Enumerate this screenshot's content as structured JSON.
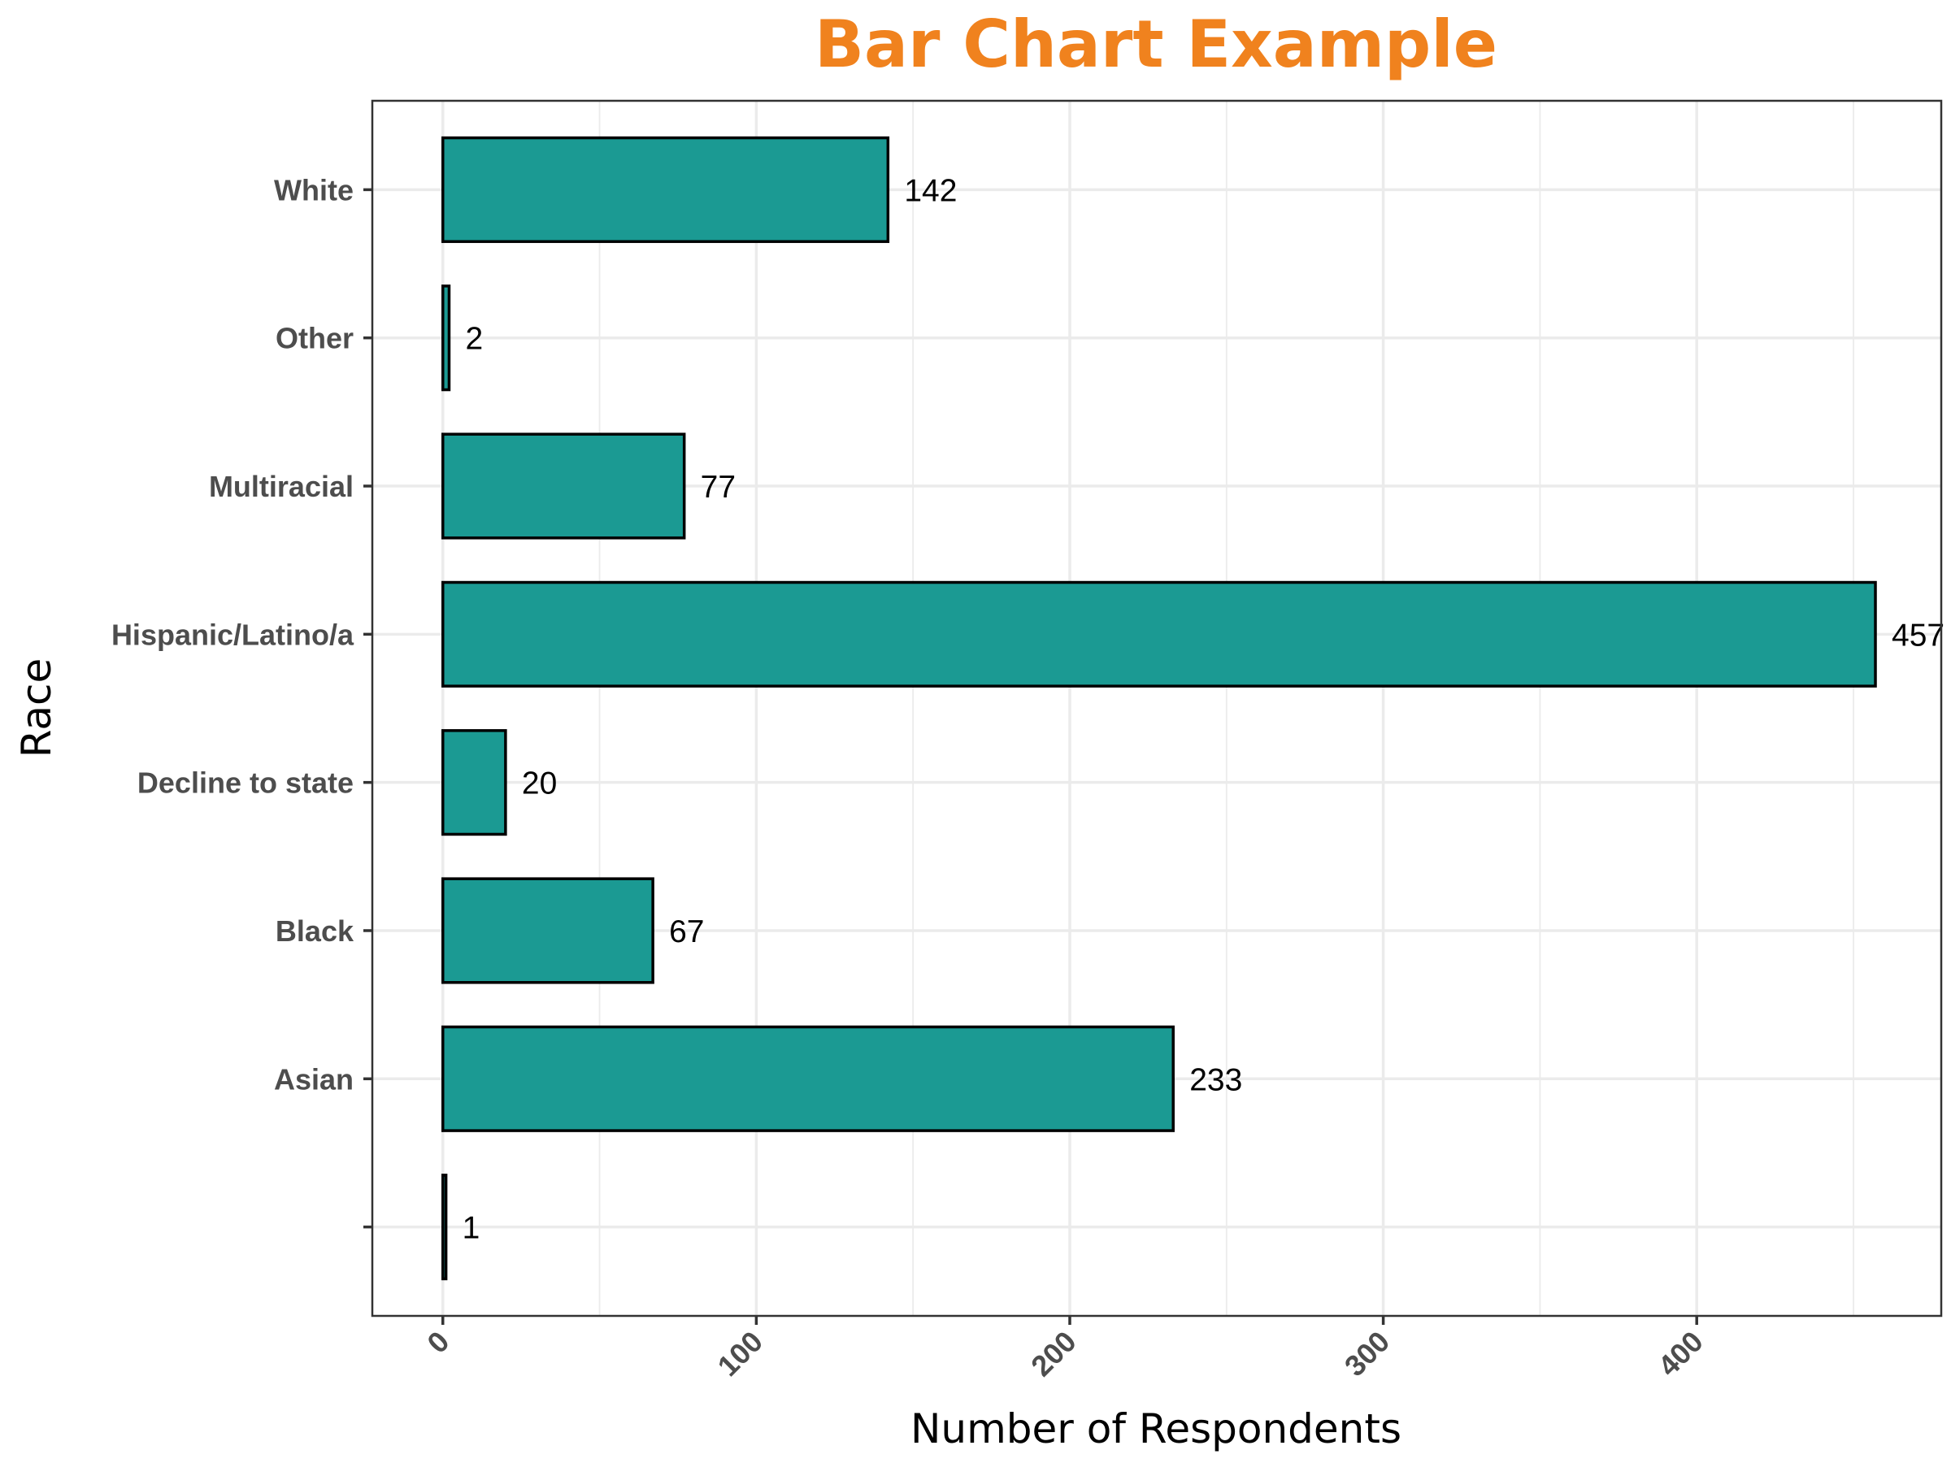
{
  "chart_data": {
    "type": "bar",
    "orientation": "horizontal",
    "title": "Bar Chart Example",
    "xlabel": "Number of Respondents",
    "ylabel": "Race",
    "categories": [
      "",
      "Asian",
      "Black",
      "Decline to state",
      "Hispanic/Latino/a",
      "Multiracial",
      "Other",
      "White"
    ],
    "values": [
      1,
      233,
      67,
      20,
      457,
      77,
      2,
      142
    ],
    "data_labels": [
      "1",
      "233",
      "67",
      "20",
      "457",
      "77",
      "2",
      "142"
    ],
    "xlim": [
      -22.5,
      478
    ],
    "xticks": [
      0,
      100,
      200,
      300,
      400
    ],
    "xtick_labels": [
      "0",
      "100",
      "200",
      "300",
      "400"
    ],
    "grid": true,
    "legend": "none",
    "colors": {
      "bar_fill": "#1b9a93",
      "bar_outline": "#000000",
      "title": "#f0821e",
      "grid": "#ebebeb",
      "panel_border": "#333333"
    }
  }
}
